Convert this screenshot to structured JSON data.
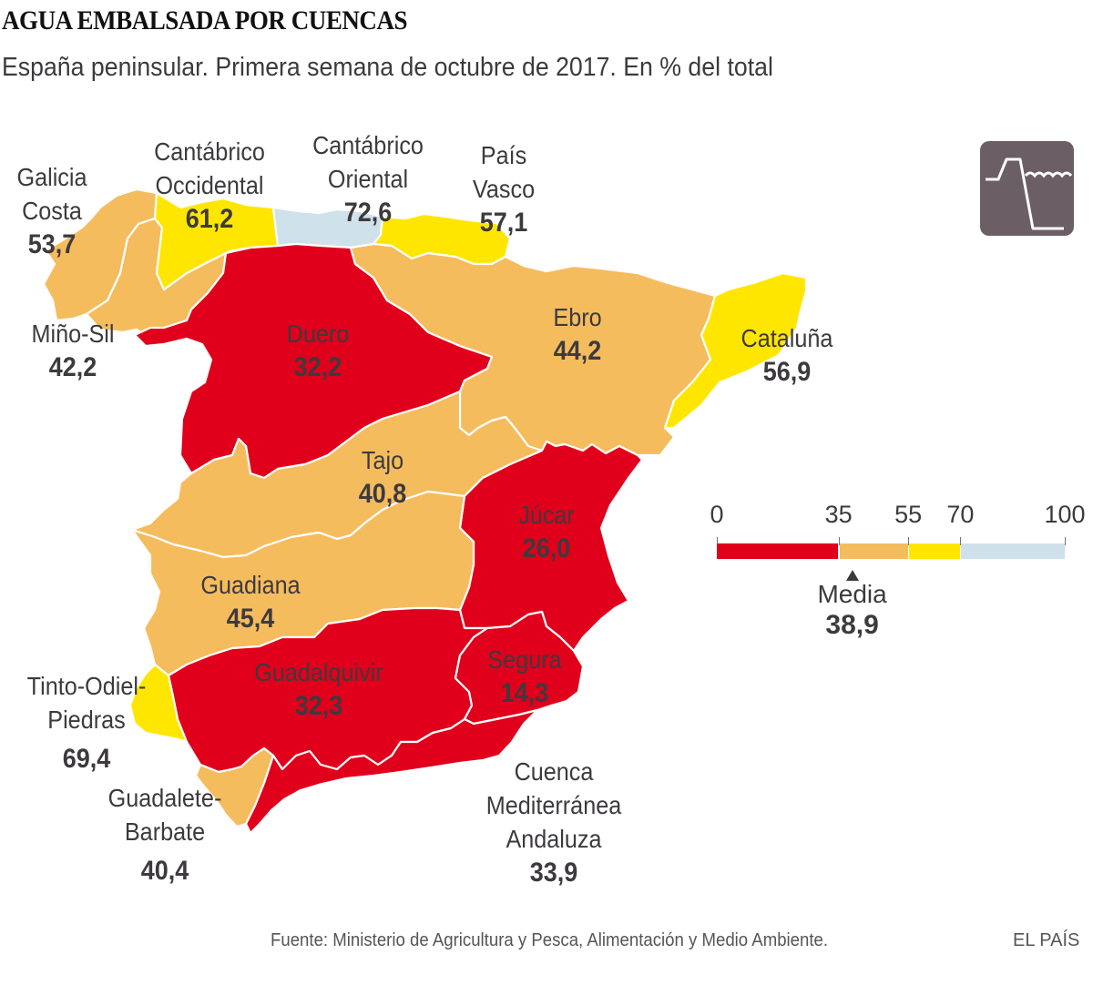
{
  "header": {
    "title": "AGUA EMBALSADA POR CUENCAS",
    "subtitle": "España peninsular. Primera semana de octubre de 2017. En % del total"
  },
  "icon": {
    "name": "reservoir-dam-icon",
    "background": "#6b5f65"
  },
  "colors": {
    "red": "#e0001b",
    "orange": "#f5bc5e",
    "yellow": "#ffe600",
    "blue": "#cfe1ea",
    "text": "#3d3a3e"
  },
  "chart_data": {
    "type": "choropleth",
    "title": "AGUA EMBALSADA POR CUENCAS",
    "subtitle": "España peninsular. Primera semana de octubre de 2017. En % del total",
    "unit": "% del total",
    "regions": [
      {
        "id": "galicia-costa",
        "name_lines": [
          "Galicia",
          "Costa"
        ],
        "value": "53,7",
        "numeric": 53.7,
        "class": "35-55"
      },
      {
        "id": "cantabrico-occidental",
        "name_lines": [
          "Cantábrico",
          "Occidental"
        ],
        "value": "61,2",
        "numeric": 61.2,
        "class": "55-70"
      },
      {
        "id": "cantabrico-oriental",
        "name_lines": [
          "Cantábrico",
          "Oriental"
        ],
        "value": "72,6",
        "numeric": 72.6,
        "class": "70-100"
      },
      {
        "id": "pais-vasco",
        "name_lines": [
          "País",
          "Vasco"
        ],
        "value": "57,1",
        "numeric": 57.1,
        "class": "55-70"
      },
      {
        "id": "mino-sil",
        "name_lines": [
          "Miño-Sil"
        ],
        "value": "42,2",
        "numeric": 42.2,
        "class": "35-55"
      },
      {
        "id": "duero",
        "name_lines": [
          "Duero"
        ],
        "value": "32,2",
        "numeric": 32.2,
        "class": "0-35"
      },
      {
        "id": "ebro",
        "name_lines": [
          "Ebro"
        ],
        "value": "44,2",
        "numeric": 44.2,
        "class": "35-55"
      },
      {
        "id": "cataluna",
        "name_lines": [
          "Cataluña"
        ],
        "value": "56,9",
        "numeric": 56.9,
        "class": "55-70"
      },
      {
        "id": "tajo",
        "name_lines": [
          "Tajo"
        ],
        "value": "40,8",
        "numeric": 40.8,
        "class": "35-55"
      },
      {
        "id": "jucar",
        "name_lines": [
          "Júcar"
        ],
        "value": "26,0",
        "numeric": 26.0,
        "class": "0-35"
      },
      {
        "id": "guadiana",
        "name_lines": [
          "Guadiana"
        ],
        "value": "45,4",
        "numeric": 45.4,
        "class": "35-55"
      },
      {
        "id": "guadalquivir",
        "name_lines": [
          "Guadalquivir"
        ],
        "value": "32,3",
        "numeric": 32.3,
        "class": "0-35"
      },
      {
        "id": "segura",
        "name_lines": [
          "Segura"
        ],
        "value": "14,3",
        "numeric": 14.3,
        "class": "0-35"
      },
      {
        "id": "tinto-odiel-piedras",
        "name_lines": [
          "Tinto-Odiel-",
          "Piedras"
        ],
        "value": "69,4",
        "numeric": 69.4,
        "class": "55-70"
      },
      {
        "id": "guadalete-barbate",
        "name_lines": [
          "Guadalete-",
          "Barbate"
        ],
        "value": "40,4",
        "numeric": 40.4,
        "class": "35-55"
      },
      {
        "id": "cuenca-mediterranea-andaluza",
        "name_lines": [
          "Cuenca",
          "Mediterránea",
          "Andaluza"
        ],
        "value": "33,9",
        "numeric": 33.9,
        "class": "0-35"
      }
    ],
    "legend": {
      "breaks": [
        0,
        35,
        55,
        70,
        100
      ],
      "break_labels": [
        "0",
        "35",
        "55",
        "70",
        "100"
      ],
      "bins": [
        {
          "range": "0-35",
          "color": "#e0001b"
        },
        {
          "range": "35-55",
          "color": "#f5bc5e"
        },
        {
          "range": "55-70",
          "color": "#ffe600"
        },
        {
          "range": "70-100",
          "color": "#cfe1ea"
        }
      ],
      "mean_label": "Media",
      "mean_value": "38,9",
      "mean_numeric": 38.9
    }
  },
  "footer": {
    "source": "Fuente: Ministerio de Agricultura y Pesca, Alimentación y Medio Ambiente.",
    "brand": "EL PAÍS"
  }
}
